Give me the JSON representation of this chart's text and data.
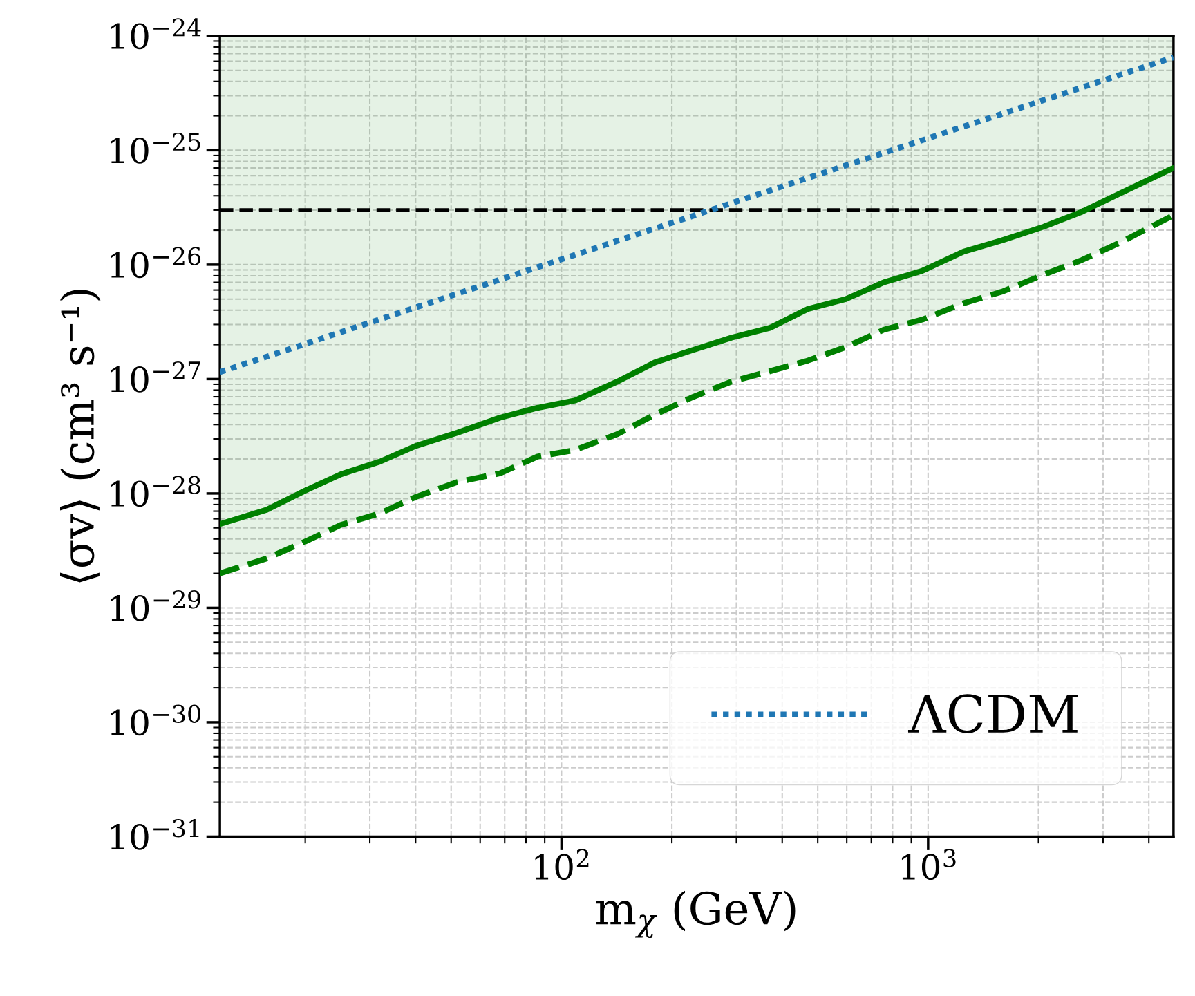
{
  "chart_data": {
    "type": "line",
    "xlabel": "m$_{χ}$ (GeV)",
    "ylabel": "⟨σv⟩ (cm³ s⁻¹)",
    "log": "xy",
    "grid": true,
    "legend": "bottom right",
    "xlim": [
      11.7,
      4670
    ],
    "ylim": [
      1e-31,
      1e-24
    ],
    "xticks": [
      {
        "value": 100,
        "label": "10$^{2}$"
      },
      {
        "value": 1000,
        "label": "10$^{3}$"
      }
    ],
    "yticks": [
      {
        "value": 1e-31,
        "label": "10$^{−31}$"
      },
      {
        "value": 1e-30,
        "label": "10$^{−30}$"
      },
      {
        "value": 1e-29,
        "label": "10$^{−29}$"
      },
      {
        "value": 1e-28,
        "label": "10$^{−28}$"
      },
      {
        "value": 1e-27,
        "label": "10$^{−27}$"
      },
      {
        "value": 1e-26,
        "label": "10$^{−26}$"
      },
      {
        "value": 1e-25,
        "label": "10$^{−25}$"
      },
      {
        "value": 1e-24,
        "label": "10$^{−24}$"
      }
    ],
    "x": [
      11.7,
      15.7,
      20,
      25,
      32,
      40,
      52,
      68,
      86,
      109,
      142,
      180,
      229,
      291,
      370,
      470,
      596,
      757,
      962,
      1250,
      1590,
      2070,
      2630,
      3340,
      4670
    ],
    "series": [
      {
        "color": "#008000",
        "line_style": "solid",
        "values": [
          5.4e-29,
          7.2e-29,
          1.06e-28,
          1.47e-28,
          1.9e-28,
          2.6e-28,
          3.4e-28,
          4.6e-28,
          5.6e-28,
          6.5e-28,
          9.5e-28,
          1.4e-27,
          1.8e-27,
          2.3e-27,
          2.8e-27,
          4.1e-27,
          5e-27,
          7e-27,
          8.8e-27,
          1.3e-26,
          1.63e-26,
          2.15e-26,
          2.9e-26,
          4.2e-26,
          7e-26
        ]
      },
      {
        "color": "#008000",
        "line_style": "dashed",
        "values": [
          2e-29,
          2.7e-29,
          3.8e-29,
          5.3e-29,
          6.7e-29,
          9.3e-29,
          1.26e-28,
          1.5e-28,
          2.1e-28,
          2.4e-28,
          3.3e-28,
          4.9e-28,
          7e-28,
          9.5e-28,
          1.17e-27,
          1.45e-27,
          1.9e-27,
          2.7e-27,
          3.3e-27,
          4.6e-27,
          5.8e-27,
          8.2e-27,
          1.1e-26,
          1.56e-26,
          2.7e-26
        ],
        "lower": [
          2e-29,
          2.7e-29,
          3.8e-29,
          5.3e-29,
          6.7e-29,
          9.3e-29,
          1.26e-28,
          1.5e-28,
          2.1e-28,
          2.4e-28,
          3.3e-28,
          4.9e-28,
          7e-28,
          9.5e-28,
          1.17e-27,
          1.45e-27,
          1.9e-27,
          2.7e-27,
          3.3e-27,
          4.6e-27,
          5.8e-27,
          8.2e-27,
          1.1e-26,
          1.56e-26,
          2.7e-26
        ],
        "upper": [
          1e-24,
          1e-24,
          1e-24,
          1e-24,
          1e-24,
          1e-24,
          1e-24,
          1e-24,
          1e-24,
          1e-24,
          1e-24,
          1e-24,
          1e-24,
          1e-24,
          1e-24,
          1e-24,
          1e-24,
          1e-24,
          1e-24,
          1e-24,
          1e-24,
          1e-24,
          1e-24,
          1e-24,
          1e-24
        ]
      },
      {
        "name": "ΛCDM",
        "color": "#1f77b4",
        "line_style": "dotted",
        "x": [
          11.7,
          4670
        ],
        "values": [
          1.15e-27,
          6.5e-25
        ]
      }
    ],
    "ref_lines": [
      {
        "axis": "y",
        "value": 3e-26,
        "color": "#000000",
        "line_style": "dashed"
      }
    ]
  }
}
